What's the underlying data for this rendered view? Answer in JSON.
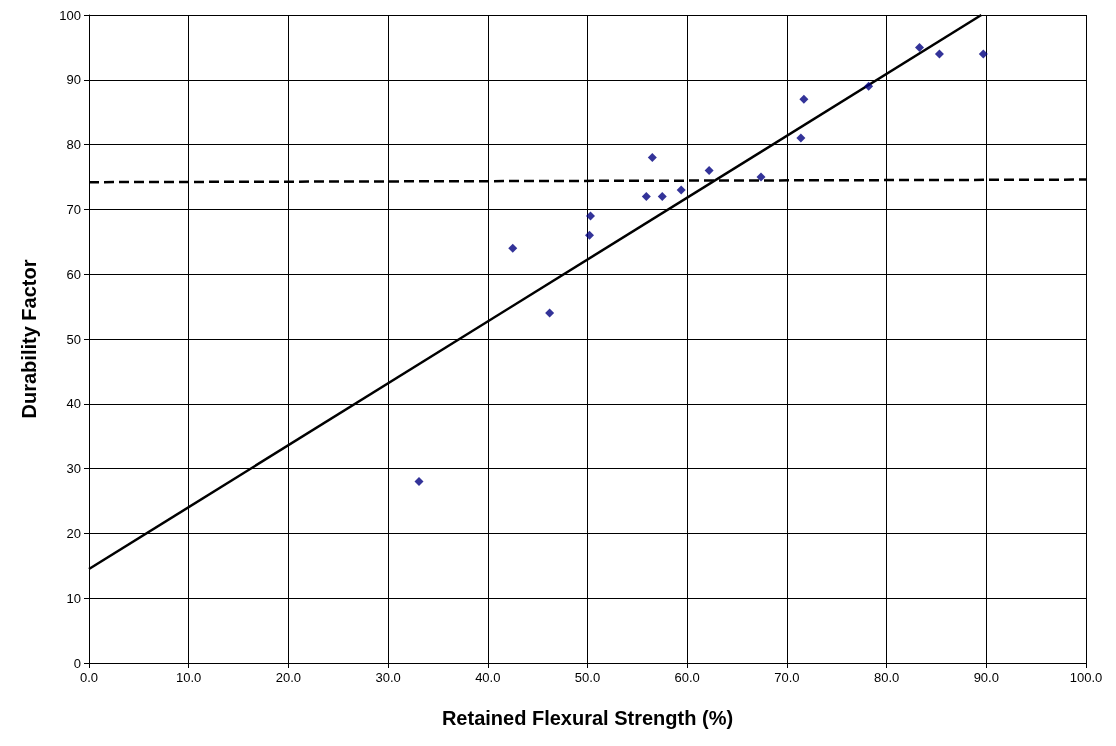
{
  "chart_data": {
    "type": "scatter",
    "xlabel": "Retained Flexural Strength (%)",
    "ylabel": "Durability Factor",
    "xlim": [
      0,
      100
    ],
    "ylim": [
      0,
      100
    ],
    "xticks": [
      {
        "value": 0,
        "label": "0.0"
      },
      {
        "value": 10,
        "label": "10.0"
      },
      {
        "value": 20,
        "label": "20.0"
      },
      {
        "value": 30,
        "label": "30.0"
      },
      {
        "value": 40,
        "label": "40.0"
      },
      {
        "value": 50,
        "label": "50.0"
      },
      {
        "value": 60,
        "label": "60.0"
      },
      {
        "value": 70,
        "label": "70.0"
      },
      {
        "value": 80,
        "label": "80.0"
      },
      {
        "value": 90,
        "label": "90.0"
      },
      {
        "value": 100,
        "label": "100.0"
      }
    ],
    "yticks": [
      0,
      10,
      20,
      30,
      40,
      50,
      60,
      70,
      80,
      90,
      100
    ],
    "grid": true,
    "series": [
      {
        "type": "scatter",
        "color": "#000080",
        "marker": "diamond",
        "x": [
          33.1,
          42.5,
          46.2,
          50.2,
          50.3,
          55.9,
          56.5,
          57.5,
          59.4,
          62.2,
          67.4,
          71.4,
          71.7,
          78.2,
          83.3,
          85.3,
          89.7
        ],
        "values": [
          28,
          64,
          54,
          66,
          69,
          72,
          78,
          72,
          73,
          76,
          75,
          81,
          87,
          89,
          95,
          94,
          94
        ]
      },
      {
        "type": "line",
        "color": "#000000",
        "marker": "none",
        "line_style": "solid",
        "x": [
          0,
          89.5
        ],
        "values": [
          14.5,
          100
        ]
      },
      {
        "type": "line",
        "color": "#000000",
        "marker": "none",
        "line_style": "dashed",
        "x": [
          0,
          100
        ],
        "values": [
          74.2,
          74.6
        ]
      }
    ]
  }
}
